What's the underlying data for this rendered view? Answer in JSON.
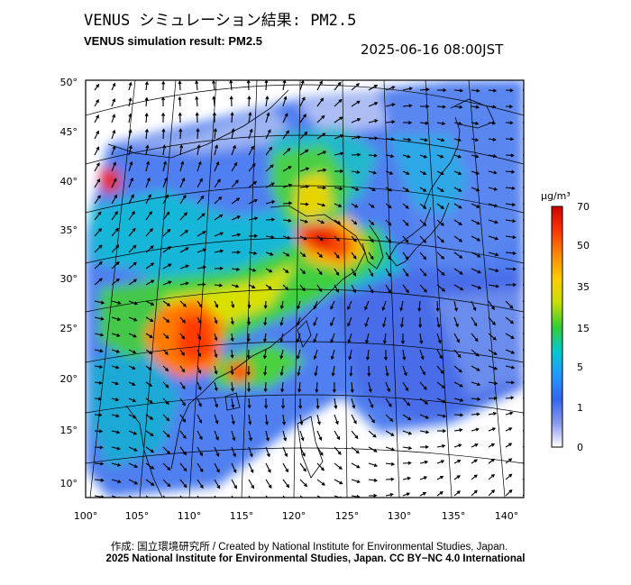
{
  "header": {
    "title_jp": "VENUS シミュレーション結果: PM2.5",
    "title_en": "VENUS simulation result: PM2.5",
    "timestamp": "2025-06-16 08:00JST"
  },
  "map": {
    "lon_ticks": [
      "100°",
      "105°",
      "110°",
      "115°",
      "120°",
      "125°",
      "130°",
      "135°",
      "140°"
    ],
    "lat_ticks": [
      "50°",
      "45°",
      "40°",
      "35°",
      "30°",
      "25°",
      "20°",
      "15°",
      "10°"
    ],
    "lon_range": [
      100,
      141
    ],
    "lat_range": [
      9,
      51
    ]
  },
  "colorbar": {
    "unit": "μg/m³",
    "labels": [
      "70",
      "50",
      "35",
      "15",
      "5",
      "1",
      "0"
    ],
    "colors": [
      "#d00000",
      "#ff4400",
      "#ff9900",
      "#ffdd00",
      "#88dd00",
      "#22cc44",
      "#00cccc",
      "#2299ff",
      "#3366ee",
      "#5577ee",
      "#8899ee",
      "#bbccf5",
      "#ffffff"
    ]
  },
  "footer": {
    "credit_line1": "作成: 国立環境研究所 / Created by National Institute for Environmental Studies, Japan.",
    "credit_line2": "2025 National Institute for Environmental Studies, Japan. CC BY−NC 4.0 International"
  }
}
